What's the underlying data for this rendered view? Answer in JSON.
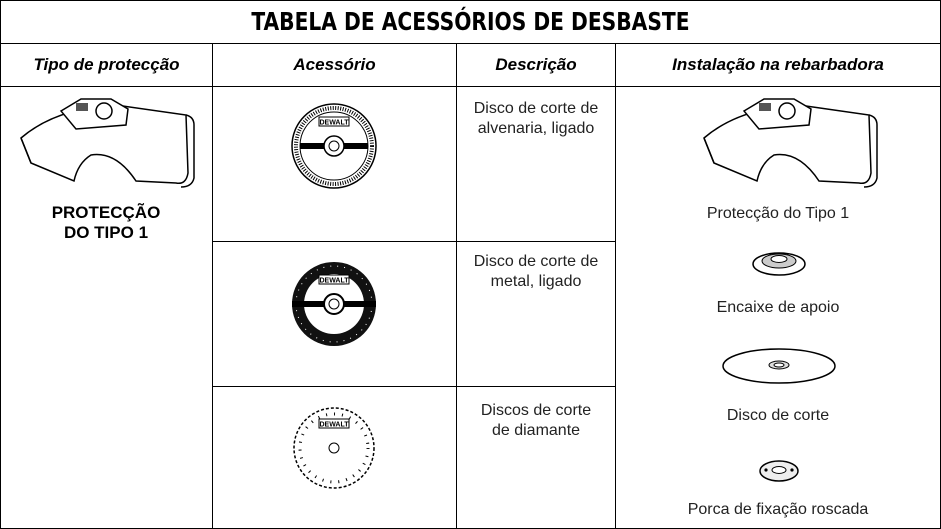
{
  "title": "TABELA DE ACESSÓRIOS DE DESBASTE",
  "table": {
    "headers": [
      "Tipo de protecção",
      "Acessório",
      "Descrição",
      "Instalação na rebarbadora"
    ],
    "guard_type": "PROTECÇÃO DO TIPO 1",
    "brand": "DEWALT",
    "descriptions": [
      "Disco de corte de alvenaria, ligado",
      "Disco de corte de metal, ligado",
      "Discos de corte de diamante"
    ],
    "installation": [
      "Protecção do Tipo 1",
      "Encaixe de apoio",
      "Disco de corte",
      "Porca de fixação roscada"
    ]
  }
}
